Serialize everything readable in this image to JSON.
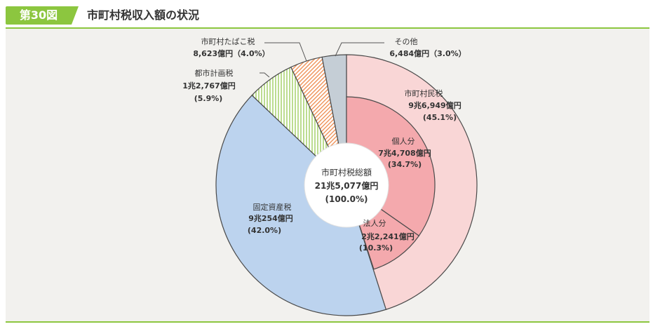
{
  "header": {
    "figure_number": "第30図",
    "title": "市町村税収入額の状況"
  },
  "colors": {
    "accent": "#8cc63f",
    "panel": "#f2f1ee",
    "resident_outer": "#f9d6d6",
    "resident_inner": "#f4a9ad",
    "property": "#bcd3ee",
    "city_planning": "#8fc447",
    "tobacco": "#ee8a4c",
    "other": "#c5ced6"
  },
  "chart_data": {
    "type": "pie",
    "center": {
      "name": "市町村税総額",
      "amount": "21兆5,077億円",
      "percent": "(100.0%)"
    },
    "outer": [
      {
        "name": "市町村民税",
        "amount": "9兆6,949億円",
        "percent": "(45.1%)",
        "value": 45.1,
        "color": "#f9d6d6",
        "pattern": "solid"
      },
      {
        "name": "固定資産税",
        "amount": "9兆254億円",
        "percent": "(42.0%)",
        "value": 42.0,
        "color": "#bcd3ee",
        "pattern": "solid"
      },
      {
        "name": "都市計画税",
        "amount": "1兆2,767億円",
        "percent": "(5.9%)",
        "value": 5.9,
        "color": "#8fc447",
        "pattern": "vertical-lines"
      },
      {
        "name": "市町村たばこ税",
        "amount": "8,623億円（4.0%）",
        "value": 4.0,
        "color": "#ee8a4c",
        "pattern": "diagonal-lines"
      },
      {
        "name": "その他",
        "amount": "6,484億円（3.0%）",
        "value": 3.0,
        "color": "#c5ced6",
        "pattern": "solid"
      }
    ],
    "inner": [
      {
        "name": "個人分",
        "amount": "7兆4,708億円",
        "percent": "(34.7%)",
        "value": 34.7,
        "color": "#f4a9ad"
      },
      {
        "name": "法人分",
        "amount": "2兆2,241億円",
        "percent": "(10.3%)",
        "value": 10.3,
        "color": "#f4a9ad"
      }
    ]
  }
}
